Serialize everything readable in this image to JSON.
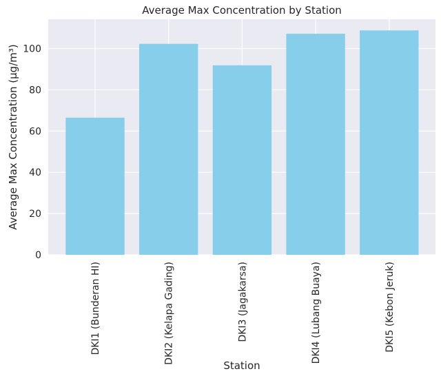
{
  "chart_data": {
    "type": "bar",
    "title": "Average Max Concentration by Station",
    "xlabel": "Station",
    "ylabel": "Average Max Concentration (µg/m³)",
    "categories": [
      "DKI1 (Bunderan HI)",
      "DKI2 (Kelapa Gading)",
      "DKI3 (Jagakarsa)",
      "DKI4 (Lubang Buaya)",
      "DKI5 (Kebon Jeruk)"
    ],
    "values": [
      66.5,
      102.3,
      91.9,
      107.2,
      108.8
    ],
    "yticks": [
      0,
      20,
      40,
      60,
      80,
      100
    ],
    "ylim": [
      0,
      114.2
    ],
    "grid": true,
    "legend": "none",
    "colors": {
      "bar": "#87CEEB",
      "background": "#EAEAF2",
      "grid": "#FFFFFF",
      "text": "#262626"
    }
  }
}
